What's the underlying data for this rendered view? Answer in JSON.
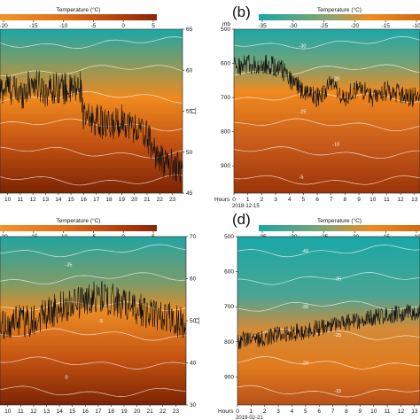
{
  "colormap": {
    "cold": "#1aa7a7",
    "mid": "#f08a1e",
    "hot": "#8c2a06",
    "contour": "#ffffff",
    "series": "#111111"
  },
  "chart_data": [
    {
      "panel": "a",
      "panel_label": "",
      "type": "heatmap",
      "colorbar": {
        "title": "Temperature (°C)",
        "ticks": [
          "-20",
          "-15",
          "-10",
          "-5",
          "0",
          "5"
        ],
        "vmin": -20,
        "vmax": 5
      },
      "x": {
        "ticks": [
          "10",
          "11",
          "12",
          "13",
          "14",
          "15",
          "16",
          "17",
          "18",
          "19",
          "20",
          "21",
          "22",
          "23"
        ],
        "range": [
          9.4,
          23.8
        ],
        "label": "",
        "date": ""
      },
      "y_left": {
        "label": "",
        "ticks": []
      },
      "y_right": {
        "label": "TT",
        "ticks": [
          "45",
          "50",
          "55",
          "60",
          "65"
        ],
        "range": [
          45,
          65
        ]
      },
      "contour_labels": [],
      "series": {
        "axis": "right",
        "knots": [
          [
            9.4,
            57.5
          ],
          [
            10,
            58
          ],
          [
            11,
            57
          ],
          [
            12,
            58.5
          ],
          [
            13,
            57.5
          ],
          [
            14,
            58
          ],
          [
            15,
            57.5
          ],
          [
            15.8,
            58
          ],
          [
            16,
            54
          ],
          [
            17,
            54
          ],
          [
            18,
            53
          ],
          [
            19,
            54
          ],
          [
            20,
            53
          ],
          [
            21,
            52
          ],
          [
            22,
            49
          ],
          [
            23,
            48.5
          ],
          [
            23.8,
            48
          ]
        ],
        "noise": 2
      }
    },
    {
      "panel": "b",
      "panel_label": "(b)",
      "type": "heatmap",
      "colorbar": {
        "title": "Temperature (°C)",
        "ticks": [
          "-35",
          "-30",
          "-25",
          "-20",
          "-15",
          "-10"
        ],
        "vmin": -35,
        "vmax": -10
      },
      "x": {
        "ticks": [
          "0",
          "1",
          "2",
          "3",
          "4",
          "5",
          "6",
          "7",
          "8",
          "9",
          "10",
          "11",
          "12",
          "13"
        ],
        "range": [
          0,
          13.4
        ],
        "label": "Hours",
        "date": "2018-12-15"
      },
      "y_left": {
        "label": "mb",
        "ticks": [
          "500",
          "600",
          "700",
          "800",
          "900"
        ],
        "range": [
          500,
          980
        ],
        "inverted": true
      },
      "y_right": {
        "label": "",
        "ticks": []
      },
      "contour_labels": [
        "-30",
        "-20",
        "-15",
        "-10",
        "-5"
      ],
      "series": {
        "axis": "left",
        "knots": [
          [
            0,
            605
          ],
          [
            1,
            605
          ],
          [
            2,
            600
          ],
          [
            3,
            610
          ],
          [
            3.5,
            620
          ],
          [
            4,
            650
          ],
          [
            5,
            680
          ],
          [
            6,
            700
          ],
          [
            7,
            660
          ],
          [
            8,
            700
          ],
          [
            9,
            670
          ],
          [
            10,
            700
          ],
          [
            11,
            680
          ],
          [
            12,
            690
          ],
          [
            13,
            700
          ],
          [
            13.4,
            700
          ]
        ],
        "noise": 30
      }
    },
    {
      "panel": "c",
      "panel_label": "",
      "type": "heatmap",
      "colorbar": {
        "title": "Temperature (°C)",
        "ticks": [
          "-20",
          "-15",
          "-10",
          "-5",
          "0",
          "5"
        ],
        "vmin": -20,
        "vmax": 5
      },
      "x": {
        "ticks": [
          "10",
          "11",
          "12",
          "13",
          "14",
          "15",
          "16",
          "17",
          "18",
          "19",
          "20",
          "21",
          "22",
          "23"
        ],
        "range": [
          9.4,
          23.8
        ],
        "label": "",
        "date": ""
      },
      "y_left": {
        "label": "",
        "ticks": []
      },
      "y_right": {
        "label": "TT",
        "ticks": [
          "30",
          "40",
          "50",
          "60",
          "70"
        ],
        "range": [
          30,
          70
        ]
      },
      "contour_labels": [
        "-35",
        "-5",
        "0"
      ],
      "series": {
        "axis": "right",
        "knots": [
          [
            9.4,
            48
          ],
          [
            10,
            49
          ],
          [
            11,
            50
          ],
          [
            12,
            50
          ],
          [
            13,
            52
          ],
          [
            14,
            53
          ],
          [
            15,
            54
          ],
          [
            16,
            55
          ],
          [
            17,
            56
          ],
          [
            18,
            55
          ],
          [
            19,
            54
          ],
          [
            20,
            53
          ],
          [
            21,
            52
          ],
          [
            22,
            51
          ],
          [
            23,
            50
          ],
          [
            23.8,
            49
          ]
        ],
        "noise": 4
      }
    },
    {
      "panel": "d",
      "panel_label": "(d)",
      "type": "heatmap",
      "colorbar": {
        "title": "Temperature (°C)",
        "ticks": [
          "-35",
          "-30",
          "-25",
          "-20",
          "-15",
          "-10"
        ],
        "vmin": -35,
        "vmax": -10
      },
      "x": {
        "ticks": [
          "0",
          "1",
          "2",
          "3",
          "4",
          "5",
          "6",
          "7",
          "8",
          "9",
          "10",
          "11",
          "12",
          "13"
        ],
        "range": [
          0,
          13.4
        ],
        "label": "Hours",
        "date": "2019-02-21"
      },
      "y_left": {
        "label": "",
        "ticks": [
          "500",
          "600",
          "700",
          "800",
          "900"
        ],
        "range": [
          500,
          980
        ],
        "inverted": true
      },
      "y_right": {
        "label": "",
        "ticks": []
      },
      "contour_labels": [
        "-40",
        "-35",
        "-30",
        "-25",
        "-20",
        "-15"
      ],
      "series": {
        "axis": "left",
        "knots": [
          [
            0,
            800
          ],
          [
            1,
            790
          ],
          [
            2,
            790
          ],
          [
            3,
            780
          ],
          [
            4,
            775
          ],
          [
            5,
            770
          ],
          [
            6,
            760
          ],
          [
            7,
            750
          ],
          [
            8,
            745
          ],
          [
            9,
            740
          ],
          [
            10,
            730
          ],
          [
            11,
            725
          ],
          [
            12,
            720
          ],
          [
            13,
            715
          ],
          [
            13.4,
            715
          ]
        ],
        "noise": 25
      }
    }
  ]
}
